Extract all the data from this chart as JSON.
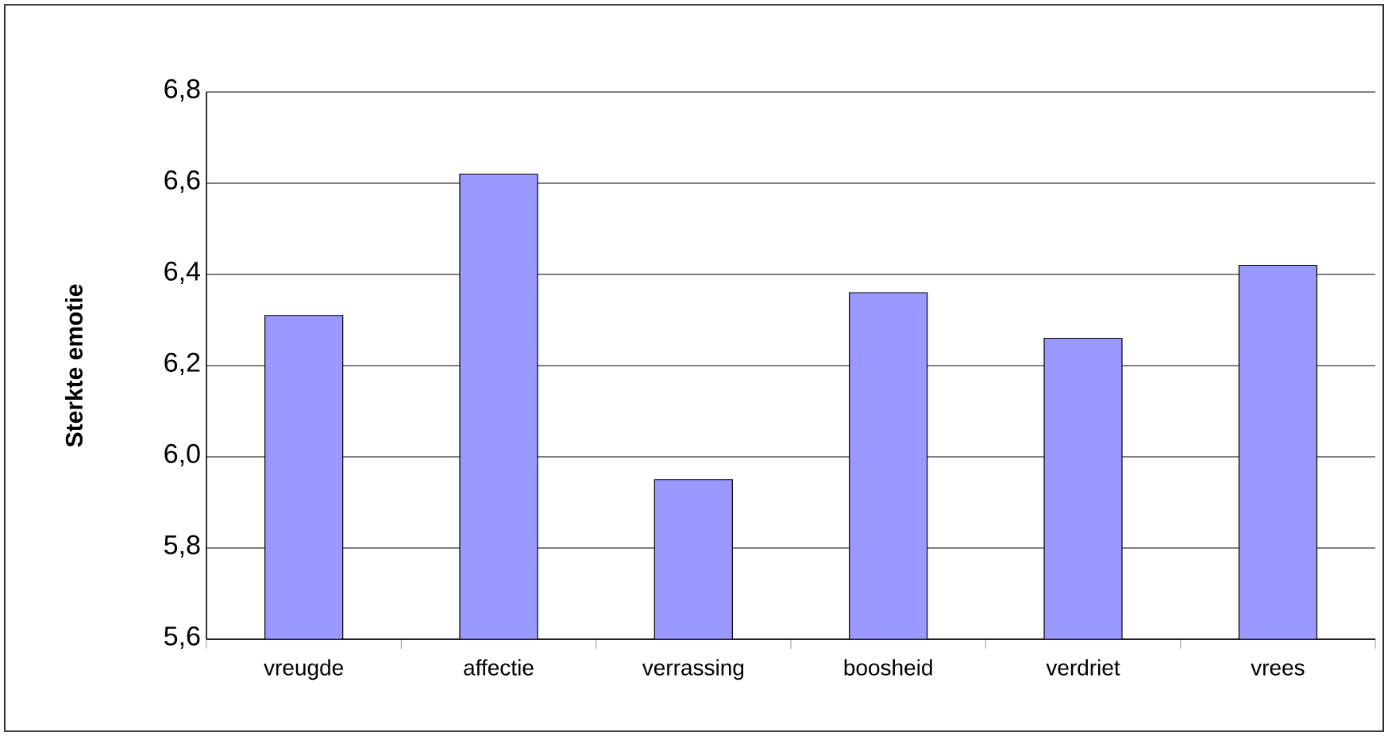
{
  "chart_data": {
    "type": "bar",
    "ylabel": "Sterkte emotie",
    "categories": [
      "vreugde",
      "affectie",
      "verrassing",
      "boosheid",
      "verdriet",
      "vrees"
    ],
    "values": [
      6.31,
      6.62,
      5.95,
      6.36,
      6.26,
      6.42
    ],
    "color": "#9999ff",
    "ylim": [
      5.6,
      6.8
    ],
    "yticks": [
      {
        "value": 5.6,
        "label": "5,6"
      },
      {
        "value": 5.8,
        "label": "5,8"
      },
      {
        "value": 6.0,
        "label": "6,0"
      },
      {
        "value": 6.2,
        "label": "6,2"
      },
      {
        "value": 6.4,
        "label": "6,4"
      },
      {
        "value": 6.6,
        "label": "6,6"
      },
      {
        "value": 6.8,
        "label": "6,8"
      }
    ],
    "grid": "y"
  }
}
